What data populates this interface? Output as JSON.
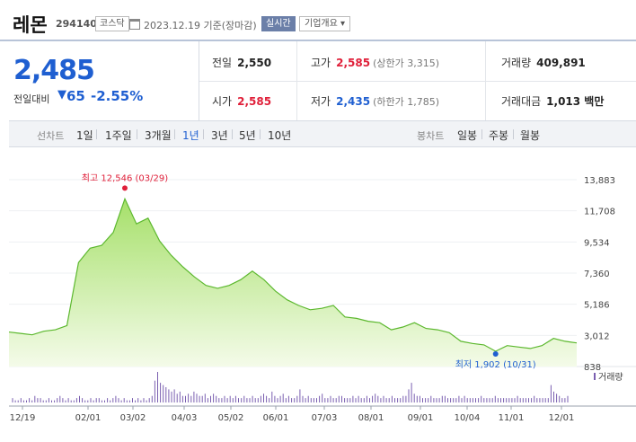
{
  "header": {
    "name": "레몬",
    "code": "294140",
    "market": "코스닥",
    "date": "2023.12.19 기준(장마감)",
    "realtime_button": "실시간",
    "company_info_button": "기업개요 ▾"
  },
  "quote": {
    "price": "2,485",
    "compare_label": "전일대비",
    "change": "65",
    "change_pct": "-2.55%",
    "colors": {
      "down": "#1f5fd1",
      "up": "#e0203a"
    }
  },
  "stats": {
    "prev_close": {
      "label": "전일",
      "value": "2,550"
    },
    "open": {
      "label": "시가",
      "value": "2,585"
    },
    "high": {
      "label": "고가",
      "value": "2,585",
      "sub": "(상한가 3,315)"
    },
    "low": {
      "label": "저가",
      "value": "2,435",
      "sub": "(하한가 1,785)"
    },
    "volume": {
      "label": "거래량",
      "value": "409,891"
    },
    "amount": {
      "label": "거래대금",
      "value": "1,013 백만"
    }
  },
  "periods": {
    "line_label": "선차트",
    "line_options": [
      "1일",
      "1주일",
      "3개월",
      "1년",
      "3년",
      "5년",
      "10년"
    ],
    "active": "1년",
    "candle_label": "봉차트",
    "candle_options": [
      "일봉",
      "주봉",
      "월봉"
    ]
  },
  "chart_data": {
    "type": "area",
    "y_ticks": [
      "13,883",
      "11,708",
      "9,534",
      "7,360",
      "5,186",
      "3,012",
      "838"
    ],
    "ylim": [
      838,
      13883
    ],
    "x_ticks": [
      "12/19",
      "02/01",
      "03/02",
      "04/03",
      "05/02",
      "06/01",
      "07/03",
      "08/01",
      "09/01",
      "10/04",
      "11/01",
      "12/01"
    ],
    "high_annotation": "최고 12,546 (03/29)",
    "low_annotation": "최저 1,902 (10/31)",
    "volume_label": "거래량",
    "price_series": {
      "x": [
        "12/19",
        "01/02",
        "01/16",
        "02/01",
        "02/14",
        "02/24",
        "03/02",
        "03/08",
        "03/14",
        "03/20",
        "03/29",
        "04/03",
        "04/06",
        "04/11",
        "04/18",
        "04/25",
        "05/02",
        "05/09",
        "05/16",
        "05/23",
        "06/01",
        "06/07",
        "06/14",
        "06/21",
        "06/28",
        "07/03",
        "07/10",
        "07/17",
        "07/24",
        "08/01",
        "08/07",
        "08/14",
        "08/21",
        "08/28",
        "09/01",
        "09/08",
        "09/15",
        "09/22",
        "10/04",
        "10/11",
        "10/18",
        "10/25",
        "10/31",
        "11/08",
        "11/15",
        "11/22",
        "12/01",
        "12/08",
        "12/15",
        "12/19"
      ],
      "values": [
        3250,
        3150,
        3050,
        3300,
        3400,
        3700,
        8100,
        9100,
        9300,
        10200,
        12546,
        10800,
        11200,
        9600,
        8600,
        7800,
        7100,
        6500,
        6300,
        6500,
        6900,
        7500,
        6900,
        6100,
        5500,
        5100,
        4800,
        4900,
        5100,
        4300,
        4200,
        4000,
        3900,
        3400,
        3600,
        3900,
        3500,
        3400,
        3200,
        2600,
        2450,
        2350,
        1902,
        2300,
        2200,
        2100,
        2300,
        2800,
        2600,
        2485
      ]
    },
    "volume_series": [
      2,
      1,
      1,
      2,
      1,
      1,
      2,
      1,
      3,
      2,
      2,
      1,
      1,
      2,
      1,
      1,
      2,
      3,
      2,
      1,
      2,
      1,
      1,
      2,
      3,
      2,
      1,
      1,
      2,
      1,
      2,
      2,
      1,
      1,
      2,
      1,
      2,
      3,
      2,
      1,
      2,
      1,
      1,
      2,
      1,
      2,
      1,
      2,
      1,
      2,
      3,
      10,
      14,
      9,
      8,
      7,
      6,
      5,
      6,
      4,
      5,
      3,
      3,
      4,
      3,
      5,
      4,
      3,
      3,
      4,
      2,
      3,
      4,
      3,
      2,
      2,
      3,
      2,
      3,
      2,
      3,
      2,
      2,
      3,
      2,
      2,
      3,
      2,
      2,
      3,
      4,
      3,
      2,
      5,
      3,
      2,
      3,
      4,
      2,
      3,
      2,
      2,
      3,
      6,
      3,
      2,
      3,
      2,
      2,
      2,
      3,
      4,
      2,
      2,
      3,
      2,
      2,
      3,
      3,
      2,
      2,
      2,
      3,
      2,
      3,
      2,
      2,
      3,
      2,
      3,
      4,
      3,
      2,
      3,
      2,
      2,
      3,
      2,
      2,
      2,
      3,
      3,
      6,
      9,
      4,
      3,
      3,
      2,
      2,
      2,
      3,
      2,
      2,
      2,
      3,
      3,
      2,
      2,
      2,
      2,
      3,
      2,
      3,
      2,
      2,
      2,
      2,
      2,
      3,
      2,
      2,
      2,
      2,
      3,
      2,
      2,
      2,
      2,
      2,
      2,
      2,
      3,
      2,
      2,
      2,
      2,
      2,
      3,
      2,
      2,
      2,
      2,
      2,
      8,
      5,
      4,
      3,
      2,
      2,
      3
    ]
  }
}
